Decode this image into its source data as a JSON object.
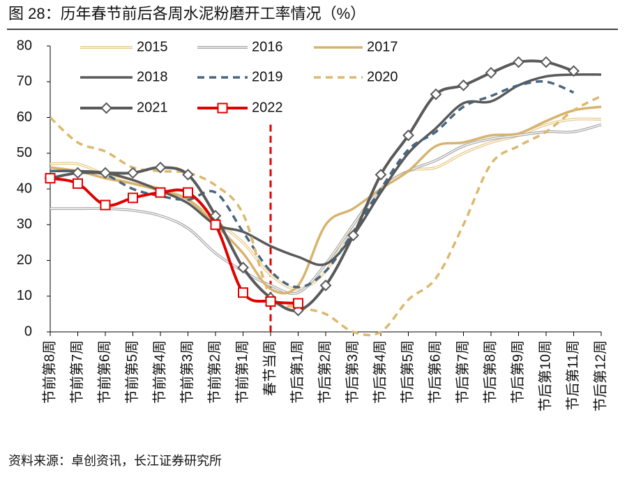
{
  "chart_data": {
    "type": "line",
    "title": "图 28：历年春节前后各周水泥粉磨开工率情况（%）",
    "source": "资料来源：卓创资讯，长江证券研究所",
    "categories": [
      "节前第8周",
      "节前第7周",
      "节前第6周",
      "节前第5周",
      "节前第4周",
      "节前第3周",
      "节前第2周",
      "节前第1周",
      "春节当周",
      "节后第1周",
      "节后第2周",
      "节后第3周",
      "节后第4周",
      "节后第5周",
      "节后第6周",
      "节后第7周",
      "节后第8周",
      "节后第9周",
      "节后第10周",
      "节后第11周",
      "节后第12周"
    ],
    "ylim": [
      0,
      80
    ],
    "yticks": [
      0,
      10,
      20,
      30,
      40,
      50,
      60,
      70,
      80
    ],
    "event_line": {
      "x_index": 8,
      "top": 58,
      "color": "#e00000"
    },
    "series": [
      {
        "name": "2015",
        "color": "#e9c98b",
        "width": 1.5,
        "double": true,
        "values": [
          47,
          47,
          44,
          42,
          40,
          37,
          31,
          25,
          16,
          12,
          17,
          30,
          40,
          45,
          46,
          50,
          53,
          55,
          58,
          59.5,
          59.5
        ]
      },
      {
        "name": "2016",
        "color": "#aaaaaa",
        "width": 1.5,
        "double": true,
        "values": [
          34.5,
          34.5,
          34.5,
          34,
          32.5,
          29,
          22,
          17,
          13,
          11,
          19,
          30,
          40,
          45,
          48,
          52,
          54,
          55,
          56,
          56,
          58
        ]
      },
      {
        "name": "2017",
        "color": "#d7b36e",
        "width": 3.5,
        "values": [
          46,
          45,
          43,
          41.5,
          39.5,
          37,
          30,
          22,
          12,
          13,
          30,
          34.5,
          40,
          45,
          52,
          53,
          55,
          55.5,
          59,
          62,
          63
        ]
      },
      {
        "name": "2018",
        "color": "#595959",
        "width": 3.5,
        "values": [
          45,
          45,
          44.5,
          42.5,
          39.5,
          36,
          30,
          28,
          24,
          21,
          19,
          27,
          39,
          50,
          57,
          64,
          64.5,
          69,
          71.5,
          72,
          72
        ]
      },
      {
        "name": "2019",
        "color": "#47667f",
        "width": 3.5,
        "dash": true,
        "values": [
          45,
          45,
          44,
          40,
          38,
          37,
          39,
          28,
          17,
          12.5,
          17,
          28,
          40,
          51,
          56,
          63,
          66,
          69,
          70,
          67,
          null
        ]
      },
      {
        "name": "2020",
        "color": "#dcb86e",
        "width": 3.5,
        "dash": true,
        "values": [
          60,
          53,
          50.5,
          46,
          45,
          44.5,
          41,
          33,
          10,
          7,
          5,
          0,
          0,
          9,
          15,
          30,
          47,
          52,
          56,
          62,
          66
        ]
      },
      {
        "name": "2021",
        "color": "#595959",
        "width": 4,
        "marker": "diamond",
        "values": [
          43,
          44.5,
          44.5,
          44.5,
          46,
          44,
          32.5,
          18,
          9.5,
          6,
          13,
          27,
          44,
          55,
          66.5,
          69,
          72.5,
          75.5,
          75.5,
          73,
          null
        ]
      },
      {
        "name": "2022",
        "color": "#e00000",
        "width": 4,
        "marker": "square",
        "values": [
          43,
          41.5,
          35.5,
          37.5,
          39,
          39,
          30,
          11,
          8.5,
          8,
          null,
          null,
          null,
          null,
          null,
          null,
          null,
          null,
          null,
          null,
          null
        ]
      }
    ]
  }
}
